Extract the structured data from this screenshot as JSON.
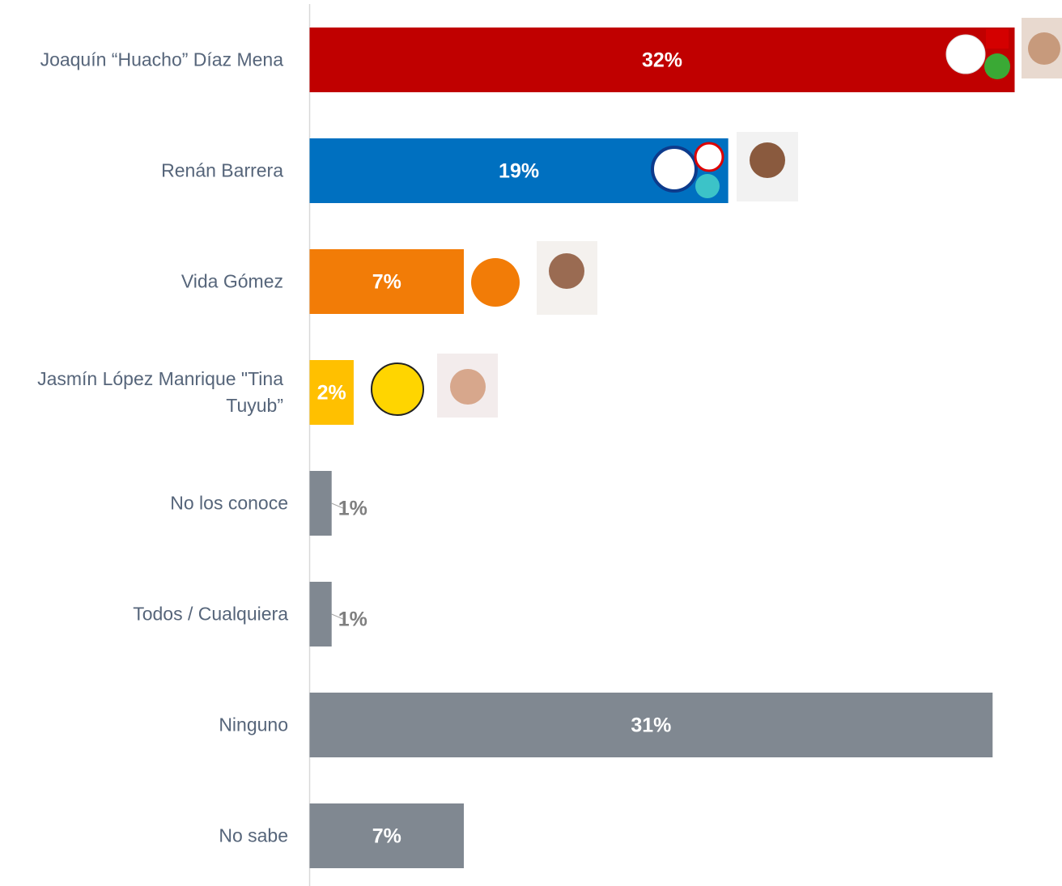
{
  "chart_data": {
    "type": "bar",
    "orientation": "horizontal",
    "categories": [
      "Joaquín “Huacho” Díaz Mena",
      "Renán Barrera",
      "Vida Gómez",
      "Jasmín López Manrique \"Tina Tuyub”",
      "No los conoce",
      "Todos / Cualquiera",
      "Ninguno",
      "No sabe"
    ],
    "values": [
      32,
      19,
      7,
      2,
      1,
      1,
      31,
      7
    ],
    "value_labels": [
      "32%",
      "19%",
      "7%",
      "2%",
      "1%",
      "1%",
      "31%",
      "7%"
    ],
    "colors": [
      "#c00000",
      "#0070c0",
      "#f27c07",
      "#ffc000",
      "#808891",
      "#808891",
      "#808891",
      "#808891"
    ]
  }
}
